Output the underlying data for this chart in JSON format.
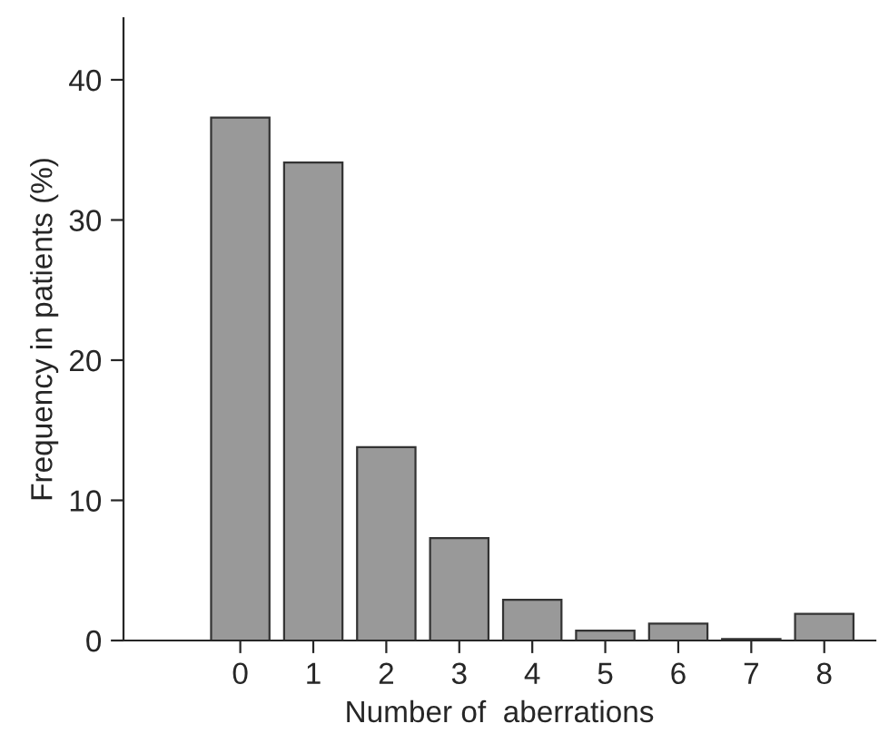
{
  "chart_data": {
    "type": "bar",
    "xlabel": "Number of  aberrations",
    "ylabel": "Frequency in patients (%)",
    "categories": [
      "0",
      "1",
      "2",
      "3",
      "4",
      "5",
      "6",
      "7",
      "8"
    ],
    "values": [
      37.3,
      34.1,
      13.8,
      7.3,
      2.9,
      0.7,
      1.2,
      0.1,
      1.9
    ],
    "color": "#999999",
    "ylim": [
      0,
      44.4
    ],
    "yticks": [
      0,
      10,
      20,
      30,
      40
    ],
    "grid": false,
    "legend": false
  }
}
